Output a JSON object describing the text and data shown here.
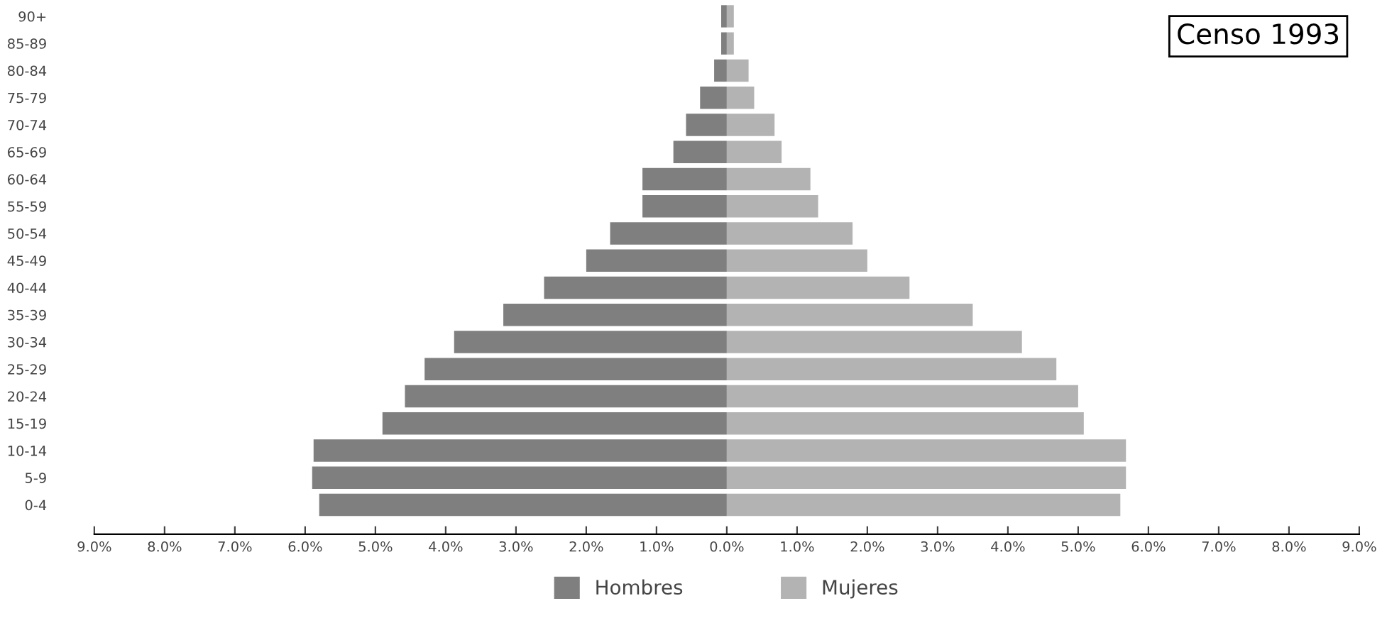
{
  "chart_data": {
    "type": "bar",
    "orientation": "horizontal",
    "annotations": [
      "Censo 1993"
    ],
    "categories": [
      "90+",
      "85-89",
      "80-84",
      "75-79",
      "70-74",
      "65-69",
      "60-64",
      "55-59",
      "50-54",
      "45-49",
      "40-44",
      "35-39",
      "30-34",
      "25-29",
      "20-24",
      "15-19",
      "10-14",
      "5-9",
      "0-4"
    ],
    "series": [
      {
        "name": "Hombres",
        "color": "#7f7f7f",
        "values": [
          -0.08,
          -0.08,
          -0.18,
          -0.38,
          -0.58,
          -0.76,
          -1.2,
          -1.2,
          -1.66,
          -2.0,
          -2.6,
          -3.18,
          -3.88,
          -4.3,
          -4.58,
          -4.9,
          -5.88,
          -5.9,
          -5.8
        ]
      },
      {
        "name": "Mujeres",
        "color": "#b3b3b3",
        "values": [
          0.1,
          0.1,
          0.31,
          0.39,
          0.68,
          0.78,
          1.19,
          1.3,
          1.79,
          2.0,
          2.6,
          3.5,
          4.2,
          4.69,
          5.0,
          5.08,
          5.68,
          5.68,
          5.6
        ]
      }
    ],
    "xlim": [
      -9,
      9
    ],
    "xticks": [
      {
        "value": -9,
        "label": "9.0%"
      },
      {
        "value": -8,
        "label": "8.0%"
      },
      {
        "value": -7,
        "label": "7.0%"
      },
      {
        "value": -6,
        "label": "6.0%"
      },
      {
        "value": -5,
        "label": "5.0%"
      },
      {
        "value": -4,
        "label": "4.0%"
      },
      {
        "value": -3,
        "label": "3.0%"
      },
      {
        "value": -2,
        "label": "2.0%"
      },
      {
        "value": -1,
        "label": "1.0%"
      },
      {
        "value": 0,
        "label": "0.0%"
      },
      {
        "value": 1,
        "label": "1.0%"
      },
      {
        "value": 2,
        "label": "2.0%"
      },
      {
        "value": 3,
        "label": "3.0%"
      },
      {
        "value": 4,
        "label": "4.0%"
      },
      {
        "value": 5,
        "label": "5.0%"
      },
      {
        "value": 6,
        "label": "6.0%"
      },
      {
        "value": 7,
        "label": "7.0%"
      },
      {
        "value": 8,
        "label": "8.0%"
      },
      {
        "value": 9,
        "label": "9.0%"
      }
    ],
    "grid": false,
    "legend": "bottom",
    "stacked": true
  }
}
